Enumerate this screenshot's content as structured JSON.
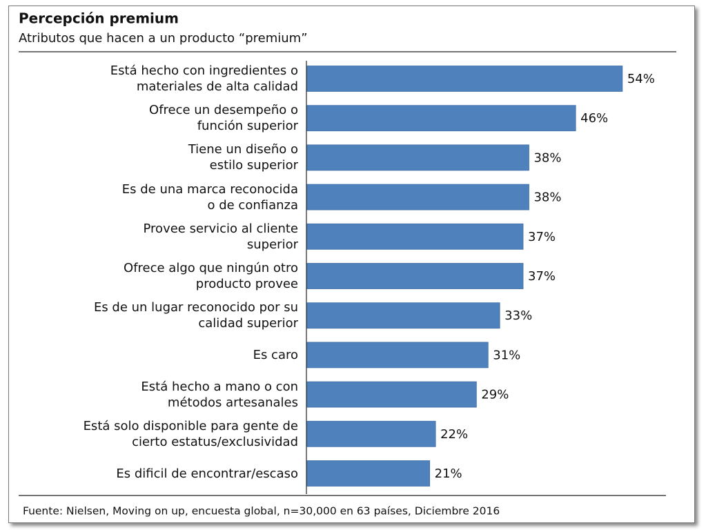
{
  "chart_data": {
    "type": "bar",
    "orientation": "horizontal",
    "title": "Percepción premium",
    "subtitle": "Atributos que hacen a un producto “premium”",
    "categories": [
      "Está hecho con ingredientes o\nmateriales de alta calidad",
      "Ofrece un desempeño o\nfunción superior",
      "Tiene un diseño o\nestilo superior",
      "Es de una marca reconocida\no de confianza",
      "Provee servicio al cliente\nsuperior",
      "Ofrece algo que ningún otro\nproducto provee",
      "Es de un lugar reconocido por su\ncalidad superior",
      "Es caro",
      "Está hecho a mano o con\nmétodos artesanales",
      "Está solo disponible para gente de\ncierto estatus/exclusividad",
      "Es dificil de encontrar/escaso"
    ],
    "values": [
      54,
      46,
      38,
      38,
      37,
      37,
      33,
      31,
      29,
      22,
      21
    ],
    "value_labels": [
      "54%",
      "46%",
      "38%",
      "38%",
      "37%",
      "37%",
      "33%",
      "31%",
      "29%",
      "22%",
      "21%"
    ],
    "color": "#4f81bd",
    "source": "Fuente: Nielsen, Moving on up, encuesta global, n=30,000  en 63 países, Diciembre 2016"
  }
}
